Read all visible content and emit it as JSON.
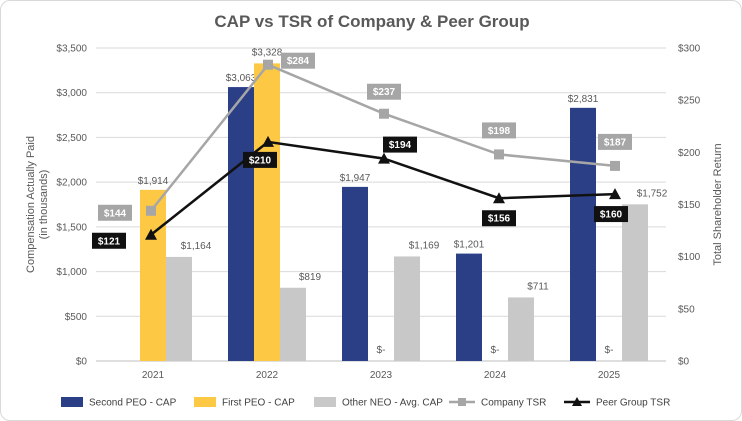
{
  "chart_data": {
    "type": "bar",
    "title": "CAP vs TSR of Company & Peer Group",
    "categories": [
      "2021",
      "2022",
      "2023",
      "2024",
      "2025"
    ],
    "ylabel": "Compensation Actually Paid\n(in thousands)",
    "ylabel_lines": [
      "Compensation Actually Paid",
      "(in thousands)"
    ],
    "y2label": "Total Shareholder Return",
    "ylim": [
      0,
      3500
    ],
    "y2lim": [
      0,
      300
    ],
    "y_ticks": [
      {
        "value": 0,
        "label": "$0"
      },
      {
        "value": 500,
        "label": "$500"
      },
      {
        "value": 1000,
        "label": "$1,000"
      },
      {
        "value": 1500,
        "label": "$1,500"
      },
      {
        "value": 2000,
        "label": "$2,000"
      },
      {
        "value": 2500,
        "label": "$2,500"
      },
      {
        "value": 3000,
        "label": "$3,000"
      },
      {
        "value": 3500,
        "label": "$3,500"
      }
    ],
    "y2_ticks": [
      {
        "value": 0,
        "label": "$0"
      },
      {
        "value": 50,
        "label": "$50"
      },
      {
        "value": 100,
        "label": "$100"
      },
      {
        "value": 150,
        "label": "$150"
      },
      {
        "value": 200,
        "label": "$200"
      },
      {
        "value": 250,
        "label": "$250"
      },
      {
        "value": 300,
        "label": "$300"
      }
    ],
    "bar_series": [
      {
        "name": "Second PEO - CAP",
        "color": "#2b3f87",
        "values": [
          null,
          3063,
          1947,
          1201,
          2831
        ],
        "labels": [
          "",
          "$3,063",
          "$1,947",
          "$1,201",
          "$2,831"
        ]
      },
      {
        "name": "First PEO - CAP",
        "color": "#fdc844",
        "values": [
          1914,
          3328,
          0,
          0,
          0
        ],
        "labels": [
          "$1,914",
          "$3,328",
          "$-",
          "$-",
          "$-"
        ]
      },
      {
        "name": "Other NEO - Avg. CAP",
        "color": "#c8c8c8",
        "values": [
          1164,
          819,
          1169,
          711,
          1752
        ],
        "labels": [
          "$1,164",
          "$819",
          "$1,169",
          "$711",
          "$1,752"
        ]
      }
    ],
    "line_series": [
      {
        "name": "Company TSR",
        "color": "#a6a6a6",
        "tag_color": "#a6a6a6",
        "marker": "square",
        "values": [
          144,
          284,
          237,
          198,
          187
        ],
        "labels": [
          "$144",
          "$284",
          "$237",
          "$198",
          "$187"
        ]
      },
      {
        "name": "Peer Group TSR",
        "color": "#111111",
        "tag_color": "#111111",
        "marker": "triangle",
        "values": [
          121,
          210,
          194,
          156,
          160
        ],
        "labels": [
          "$121",
          "$210",
          "$194",
          "$156",
          "$160"
        ]
      }
    ],
    "legend_position": "bottom"
  }
}
